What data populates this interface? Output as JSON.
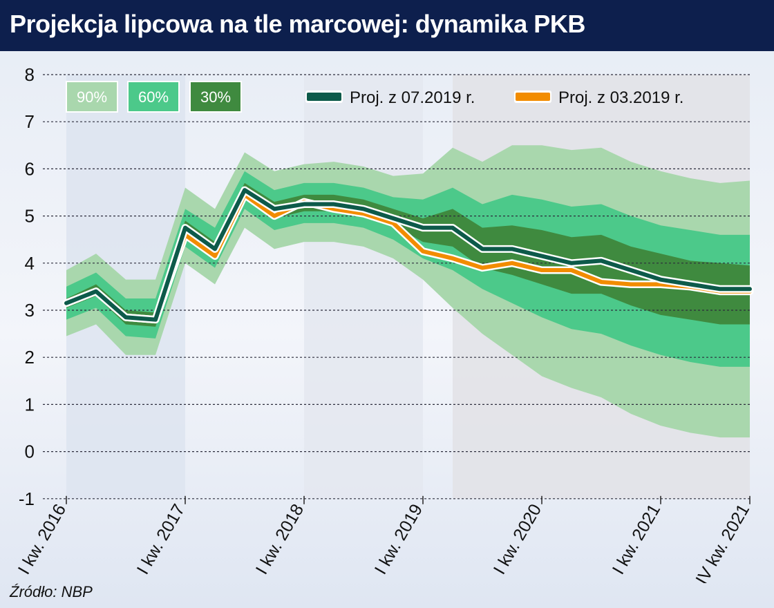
{
  "title": "Projekcja lipcowa na tle marcowej: dynamika PKB",
  "source": "Źródło: NBP",
  "colors": {
    "title_bg": "#0d1f4d",
    "band_90": "#a9d7ad",
    "band_60": "#4cc98a",
    "band_30": "#3f8a3f",
    "line_july": "#0d5a4a",
    "line_march": "#f28c00",
    "shade": "#d9dde6"
  },
  "chart_data": {
    "type": "area",
    "x_tick_labels": [
      "I kw. 2016",
      "I kw. 2017",
      "I kw. 2018",
      "I kw. 2019",
      "I kw. 2020",
      "I kw. 2021",
      "IV kw. 2021"
    ],
    "x": [
      "I kw. 2016",
      "II kw. 2016",
      "III kw. 2016",
      "IV kw. 2016",
      "I kw. 2017",
      "II kw. 2017",
      "III kw. 2017",
      "IV kw. 2017",
      "I kw. 2018",
      "II kw. 2018",
      "III kw. 2018",
      "IV kw. 2018",
      "I kw. 2019",
      "II kw. 2019",
      "III kw. 2019",
      "IV kw. 2019",
      "I kw. 2020",
      "II kw. 2020",
      "III kw. 2020",
      "IV kw. 2020",
      "I kw. 2021",
      "II kw. 2021",
      "III kw. 2021",
      "IV kw. 2021"
    ],
    "ylim": [
      -1,
      8
    ],
    "y_ticks": [
      "8",
      "7",
      "6",
      "5",
      "4",
      "3",
      "2",
      "1",
      "0",
      "-1"
    ],
    "legend_bands": [
      "90%",
      "60%",
      "30%"
    ],
    "series": [
      {
        "name": "Proj. z 07.2019 r.",
        "values": [
          3.15,
          3.4,
          2.85,
          2.8,
          4.75,
          4.3,
          5.55,
          5.15,
          5.25,
          5.25,
          5.15,
          4.95,
          4.75,
          4.75,
          4.3,
          4.3,
          4.15,
          4.0,
          4.05,
          3.85,
          3.65,
          3.55,
          3.45,
          3.45
        ]
      },
      {
        "name": "Proj. z 03.2019 r.",
        "values": [
          3.15,
          3.4,
          2.85,
          2.8,
          4.6,
          4.15,
          5.45,
          5.0,
          5.3,
          5.15,
          5.05,
          4.85,
          4.25,
          4.1,
          3.9,
          4.0,
          3.85,
          3.85,
          3.6,
          3.55,
          3.55,
          3.5,
          3.4,
          3.4
        ]
      }
    ],
    "fan_start_index": 11,
    "bands": {
      "90": {
        "lower": [
          2.45,
          2.7,
          2.05,
          2.05,
          4.0,
          3.55,
          4.75,
          4.3,
          4.45,
          4.45,
          4.35,
          4.1,
          3.65,
          3.05,
          2.5,
          2.05,
          1.6,
          1.35,
          1.15,
          0.8,
          0.55,
          0.4,
          0.3,
          0.3
        ],
        "upper": [
          3.85,
          4.2,
          3.65,
          3.65,
          5.6,
          5.15,
          6.35,
          5.95,
          6.1,
          6.15,
          6.05,
          5.85,
          5.9,
          6.45,
          6.15,
          6.5,
          6.5,
          6.4,
          6.45,
          6.15,
          5.95,
          5.8,
          5.7,
          5.75
        ]
      },
      "60": {
        "lower": [
          2.8,
          3.05,
          2.45,
          2.4,
          4.35,
          3.9,
          5.15,
          4.7,
          4.85,
          4.85,
          4.75,
          4.5,
          4.1,
          3.85,
          3.45,
          3.15,
          2.85,
          2.6,
          2.5,
          2.25,
          2.05,
          1.9,
          1.8,
          1.8
        ],
        "upper": [
          3.5,
          3.8,
          3.25,
          3.25,
          5.15,
          4.75,
          5.95,
          5.55,
          5.7,
          5.7,
          5.6,
          5.4,
          5.35,
          5.6,
          5.25,
          5.45,
          5.35,
          5.2,
          5.25,
          5.0,
          4.8,
          4.7,
          4.6,
          4.6
        ]
      },
      "30": {
        "lower": [
          3.05,
          3.3,
          2.7,
          2.65,
          4.6,
          4.15,
          5.4,
          4.95,
          5.1,
          5.1,
          5.0,
          4.8,
          4.45,
          4.35,
          3.9,
          3.75,
          3.55,
          3.35,
          3.35,
          3.1,
          2.9,
          2.8,
          2.7,
          2.7
        ],
        "upper": [
          3.25,
          3.55,
          3.0,
          2.95,
          4.9,
          4.45,
          5.7,
          5.3,
          5.45,
          5.45,
          5.35,
          5.15,
          4.95,
          5.15,
          4.75,
          4.8,
          4.7,
          4.55,
          4.6,
          4.35,
          4.2,
          4.05,
          4.0,
          3.95
        ]
      }
    },
    "grid": true,
    "legend_position": "top"
  }
}
